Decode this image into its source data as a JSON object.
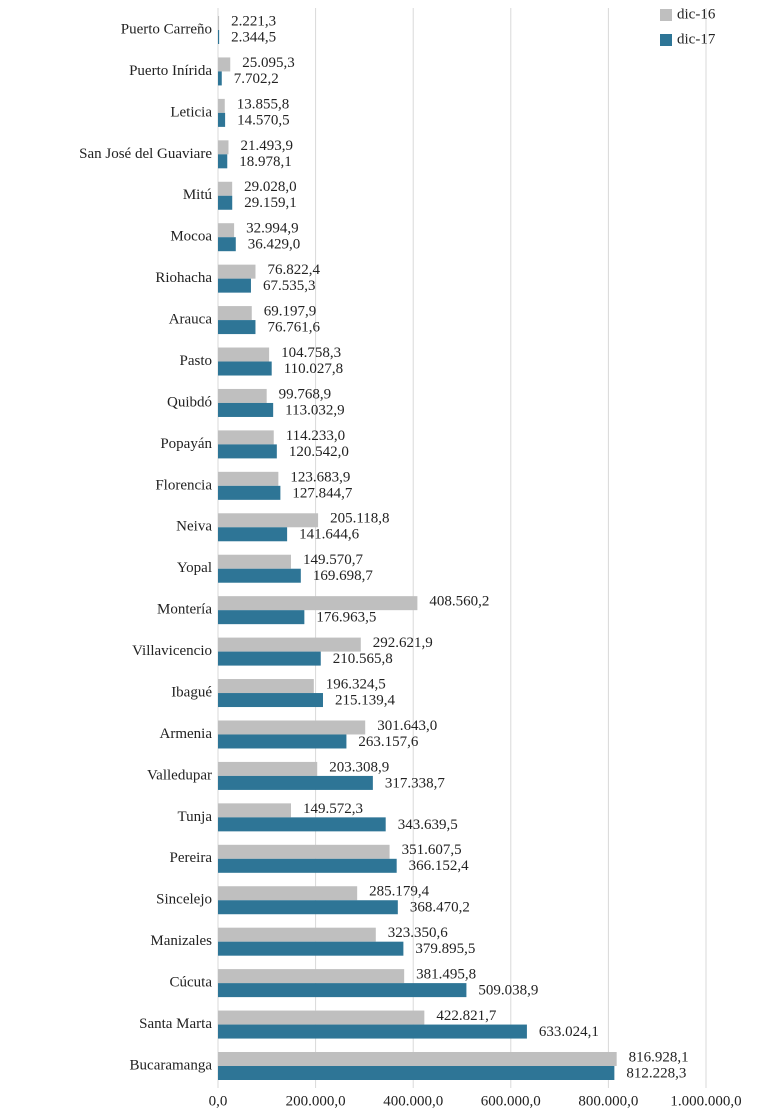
{
  "chart_data": {
    "type": "barh",
    "categories": [
      "Puerto Carreño",
      "Puerto Inírida",
      "Leticia",
      "San José del Guaviare",
      "Mitú",
      "Mocoa",
      "Riohacha",
      "Arauca",
      "Pasto",
      "Quibdó",
      "Popayán",
      "Florencia",
      "Neiva",
      "Yopal",
      "Montería",
      "Villavicencio",
      "Ibagué",
      "Armenia",
      "Valledupar",
      "Tunja",
      "Pereira",
      "Sincelejo",
      "Manizales",
      "Cúcuta",
      "Santa Marta",
      "Bucaramanga"
    ],
    "series": [
      {
        "name": "dic-16",
        "color": "#bfbfbf",
        "values": [
          2221.3,
          25095.3,
          13855.8,
          21493.9,
          29028.0,
          32994.9,
          76822.4,
          69197.9,
          104758.3,
          99768.9,
          114233.0,
          123683.9,
          205118.8,
          149570.7,
          408560.2,
          292621.9,
          196324.5,
          301643.0,
          203308.9,
          149572.3,
          351607.5,
          285179.4,
          323350.6,
          381495.8,
          422821.7,
          816928.1
        ],
        "value_labels": [
          "2.221,3",
          "25.095,3",
          "13.855,8",
          "21.493,9",
          "29.028,0",
          "32.994,9",
          "76.822,4",
          "69.197,9",
          "104.758,3",
          "99.768,9",
          "114.233,0",
          "123.683,9",
          "205.118,8",
          "149.570,7",
          "408.560,2",
          "292.621,9",
          "196.324,5",
          "301.643,0",
          "203.308,9",
          "149.572,3",
          "351.607,5",
          "285.179,4",
          "323.350,6",
          "381.495,8",
          "422.821,7",
          "816.928,1"
        ]
      },
      {
        "name": "dic-17",
        "color": "#2e7596",
        "values": [
          2344.5,
          7702.2,
          14570.5,
          18978.1,
          29159.1,
          36429.0,
          67535.3,
          76761.6,
          110027.8,
          113032.9,
          120542.0,
          127844.7,
          141644.6,
          169698.7,
          176963.5,
          210565.8,
          215139.4,
          263157.6,
          317338.7,
          343639.5,
          366152.4,
          368470.2,
          379895.5,
          509038.9,
          633024.1,
          812228.3
        ],
        "value_labels": [
          "2.344,5",
          "7.702,2",
          "14.570,5",
          "18.978,1",
          "29.159,1",
          "36.429,0",
          "67.535,3",
          "76.761,6",
          "110.027,8",
          "113.032,9",
          "120.542,0",
          "127.844,7",
          "141.644,6",
          "169.698,7",
          "176.963,5",
          "210.565,8",
          "215.139,4",
          "263.157,6",
          "317.338,7",
          "343.639,5",
          "366.152,4",
          "368.470,2",
          "379.895,5",
          "509.038,9",
          "633.024,1",
          "812.228,3"
        ]
      }
    ],
    "xlim": [
      0,
      1000000
    ],
    "xticks": [
      {
        "value": 0,
        "label": "0,0"
      },
      {
        "value": 200000,
        "label": "200.000,0"
      },
      {
        "value": 400000,
        "label": "400.000,0"
      },
      {
        "value": 600000,
        "label": "600.000,0"
      },
      {
        "value": 800000,
        "label": "800.000,0"
      },
      {
        "value": 1000000,
        "label": "1.000.000,0"
      }
    ],
    "grid": true,
    "legend": "top-right"
  }
}
